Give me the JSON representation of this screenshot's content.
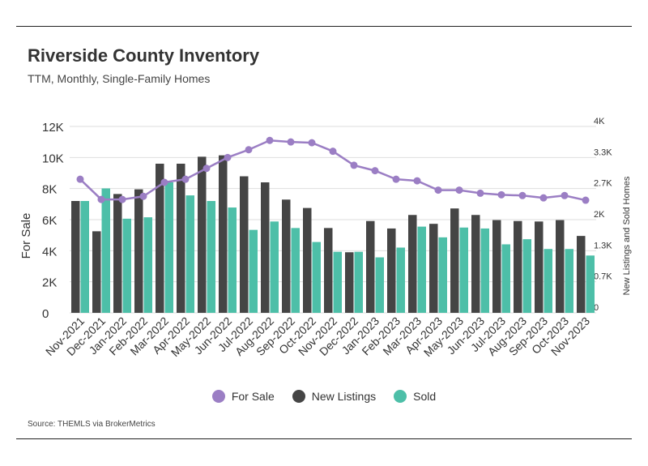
{
  "header": {
    "title": "Riverside County Inventory",
    "subtitle": "TTM, Monthly, Single-Family Homes"
  },
  "footer": {
    "source": "Source:  THEMLS via BrokerMetrics"
  },
  "colors": {
    "for_sale": "#9b7ec4",
    "new_listings": "#454545",
    "sold": "#4dbfa8"
  },
  "legend": [
    {
      "label": "For Sale",
      "color": "#9b7ec4"
    },
    {
      "label": "New Listings",
      "color": "#454545"
    },
    {
      "label": "Sold",
      "color": "#4dbfa8"
    }
  ],
  "chart_data": {
    "type": "bar",
    "title": "Riverside County Inventory",
    "subtitle": "TTM, Monthly, Single-Family Homes",
    "categories": [
      "Nov-2021",
      "Dec-2021",
      "Jan-2022",
      "Feb-2022",
      "Mar-2022",
      "Apr-2022",
      "May-2022",
      "Jun-2022",
      "Jul-2022",
      "Aug-2022",
      "Sep-2022",
      "Oct-2022",
      "Nov-2022",
      "Dec-2022",
      "Jan-2023",
      "Feb-2023",
      "Mar-2023",
      "Apr-2023",
      "May-2023",
      "Jun-2023",
      "Jul-2023",
      "Aug-2023",
      "Sep-2023",
      "Oct-2023",
      "Nov-2023"
    ],
    "ylabel_left": "For Sale",
    "ylabel_right": "New Listings and Sold Homes",
    "yticks_left": [
      "0",
      "2K",
      "4K",
      "6K",
      "8K",
      "10K",
      "12K"
    ],
    "yticks_right": [
      "0",
      "0.7K",
      "1.3K",
      "2K",
      "2.7K",
      "3.3K",
      "4K"
    ],
    "ylim_left": [
      0,
      12000
    ],
    "ylim_right": [
      0,
      4000
    ],
    "grid": true,
    "legend_position": "bottom",
    "series": [
      {
        "name": "For Sale",
        "type": "line",
        "axis": "left",
        "color": "#9b7ec4",
        "values": [
          8600,
          7300,
          7300,
          7500,
          8400,
          8600,
          9300,
          10000,
          10500,
          11100,
          11000,
          10950,
          10400,
          9500,
          9150,
          8600,
          8500,
          7900,
          7900,
          7700,
          7600,
          7550,
          7400,
          7550,
          7250
        ]
      },
      {
        "name": "New Listings",
        "type": "bar",
        "axis": "right",
        "color": "#454545",
        "values": [
          2400,
          1750,
          2550,
          2650,
          3200,
          3200,
          3350,
          3380,
          2930,
          2800,
          2430,
          2250,
          1820,
          1300,
          1970,
          1810,
          2100,
          1910,
          2240,
          2100,
          1990,
          1970,
          1960,
          1990,
          1650
        ]
      },
      {
        "name": "Sold",
        "type": "bar",
        "axis": "right",
        "color": "#4dbfa8",
        "values": [
          2400,
          2670,
          2020,
          2050,
          2800,
          2520,
          2400,
          2260,
          1780,
          1960,
          1820,
          1520,
          1310,
          1310,
          1190,
          1400,
          1850,
          1620,
          1830,
          1810,
          1470,
          1580,
          1370,
          1370,
          1230
        ]
      }
    ]
  }
}
